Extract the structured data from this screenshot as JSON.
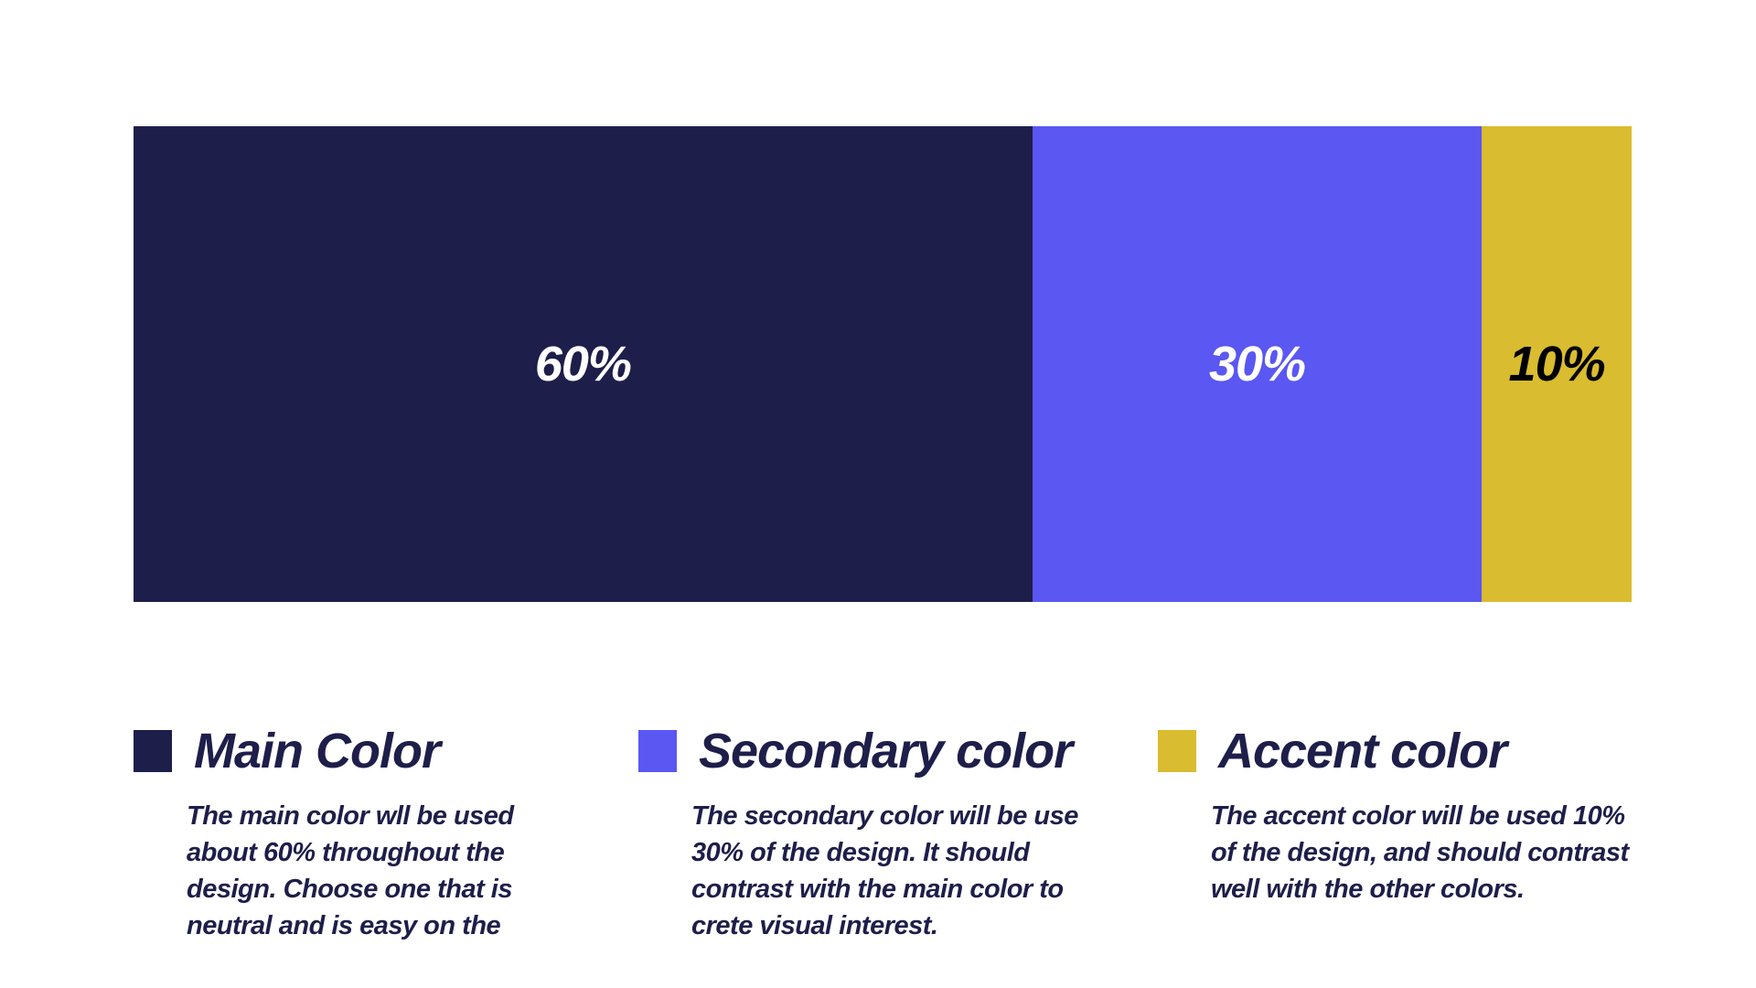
{
  "colors": {
    "main": "#1e1e4a",
    "secondary": "#5a57f2",
    "accent": "#d9bc2f"
  },
  "chart_data": {
    "type": "bar",
    "orientation": "horizontal-stacked",
    "series": [
      {
        "name": "Main Color",
        "value": 60,
        "label": "60%",
        "color": "#1e1e4a",
        "label_color": "#ffffff"
      },
      {
        "name": "Secondary color",
        "value": 30,
        "label": "30%",
        "color": "#5a57f2",
        "label_color": "#ffffff"
      },
      {
        "name": "Accent color",
        "value": 10,
        "label": "10%",
        "color": "#d9bc2f",
        "label_color": "#000000"
      }
    ],
    "total": 100,
    "grid": false
  },
  "legend": {
    "main": {
      "title": "Main Color",
      "description": "The main color wll be used about 60% throughout the design. Choose one that is neutral and is easy on the"
    },
    "secondary": {
      "title": "Secondary color",
      "description": "The secondary color will be use 30% of the design. It should contrast with the main color to crete visual interest."
    },
    "accent": {
      "title": "Accent color",
      "description": "The accent color will be used 10% of the design, and should contrast well with the other colors."
    }
  }
}
